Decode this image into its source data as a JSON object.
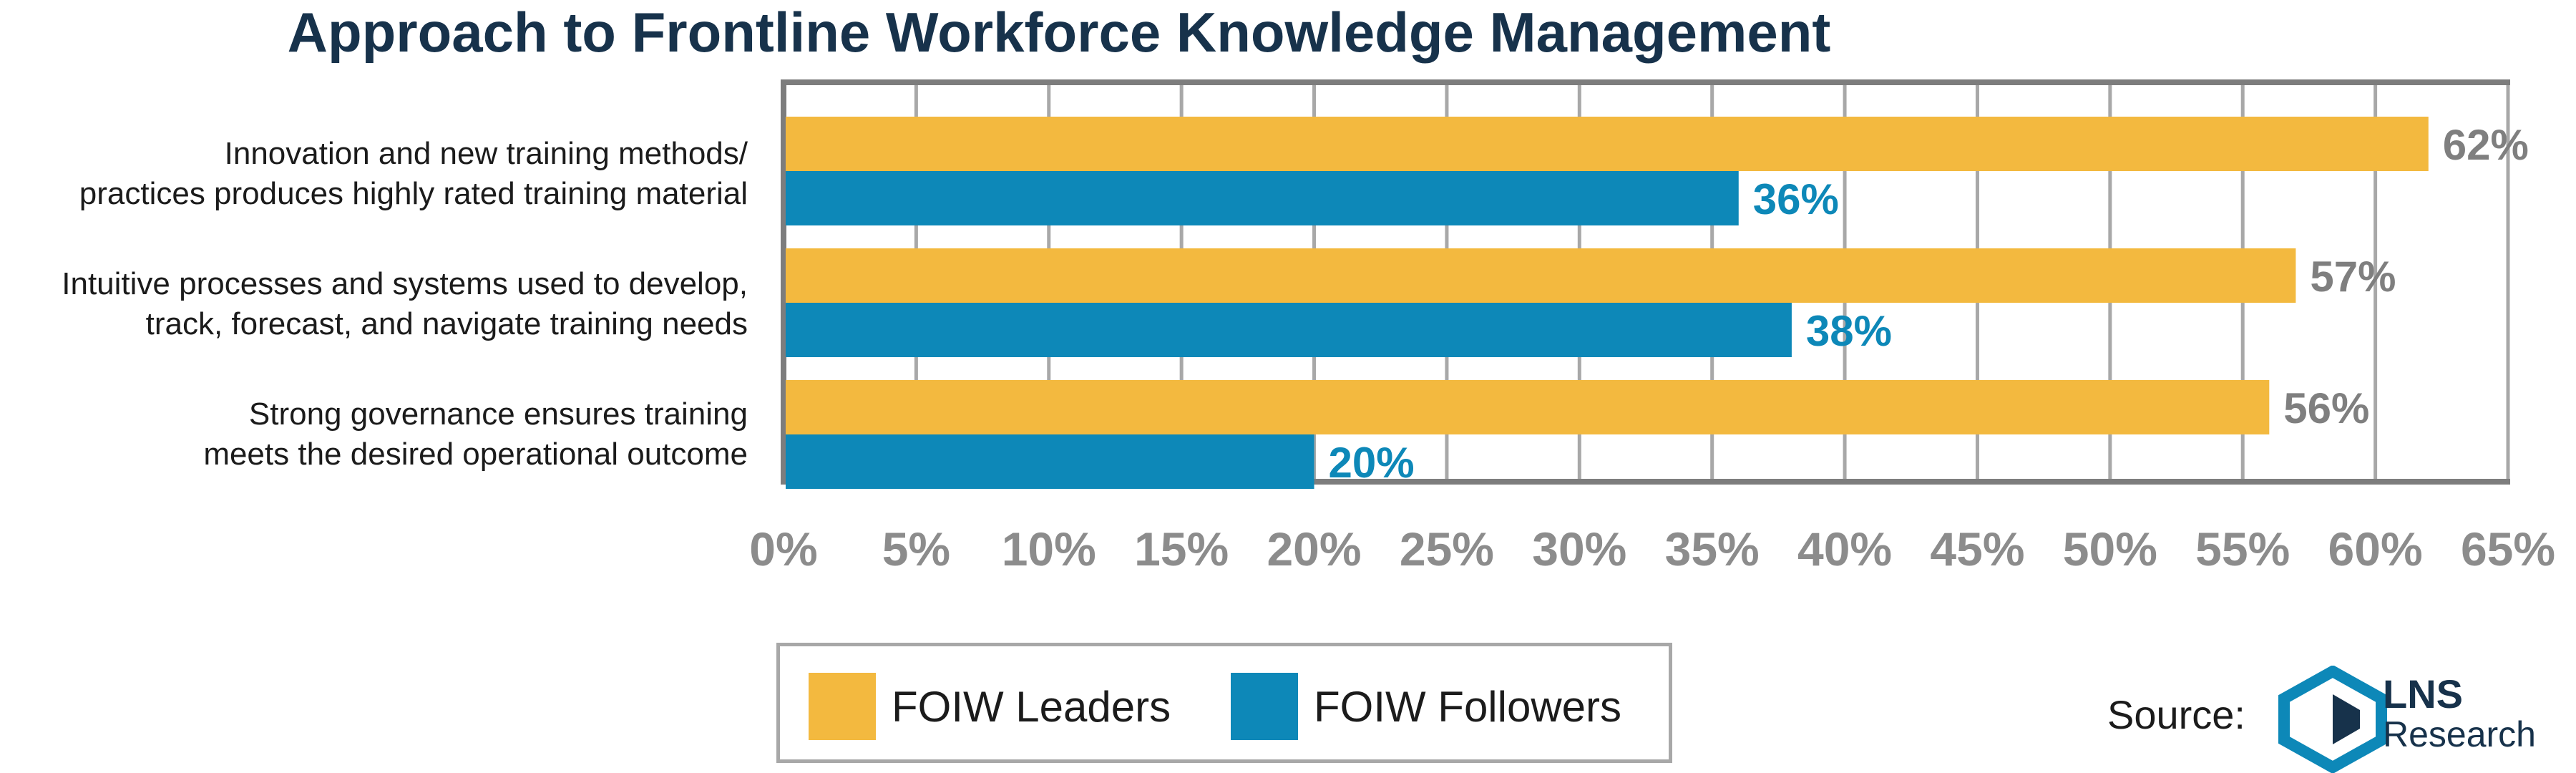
{
  "colors": {
    "leaders": "#f3b93f",
    "followers": "#0d88b8",
    "grid": "#a8a8a8",
    "frame": "#7d7d7d",
    "tick": "#8c8c8c",
    "leaders_label": "#7f7f7f",
    "followers_label": "#0d88b8"
  },
  "legend": {
    "leaders": "FOIW Leaders",
    "followers": "FOIW Followers"
  },
  "source": {
    "label": "Source:",
    "logo_main": "LNS",
    "logo_sub": "Research",
    "logo_icon": "lns-logo-icon"
  },
  "chart_data": {
    "type": "bar",
    "orientation": "horizontal",
    "title": "Approach to Frontline Workforce Knowledge Management",
    "categories": [
      [
        "Innovation and new training methods/",
        "practices produces highly rated training material"
      ],
      [
        "Intuitive processes and systems used to develop,",
        "track, forecast, and navigate training needs"
      ],
      [
        "Strong governance ensures training",
        "meets the desired operational outcome"
      ]
    ],
    "series": [
      {
        "name": "FOIW Leaders",
        "values": [
          62,
          57,
          56
        ],
        "labels": [
          "62%",
          "57%",
          "56%"
        ]
      },
      {
        "name": "FOIW Followers",
        "values": [
          36,
          38,
          20
        ],
        "labels": [
          "36%",
          "38%",
          "20%"
        ]
      }
    ],
    "xlim": [
      0,
      65
    ],
    "xticks": [
      0,
      5,
      10,
      15,
      20,
      25,
      30,
      35,
      40,
      45,
      50,
      55,
      60,
      65
    ],
    "xtick_labels": [
      "0%",
      "5%",
      "10%",
      "15%",
      "20%",
      "25%",
      "30%",
      "35%",
      "40%",
      "45%",
      "50%",
      "55%",
      "60%",
      "65%"
    ],
    "grid": true,
    "legend_position": "bottom"
  }
}
